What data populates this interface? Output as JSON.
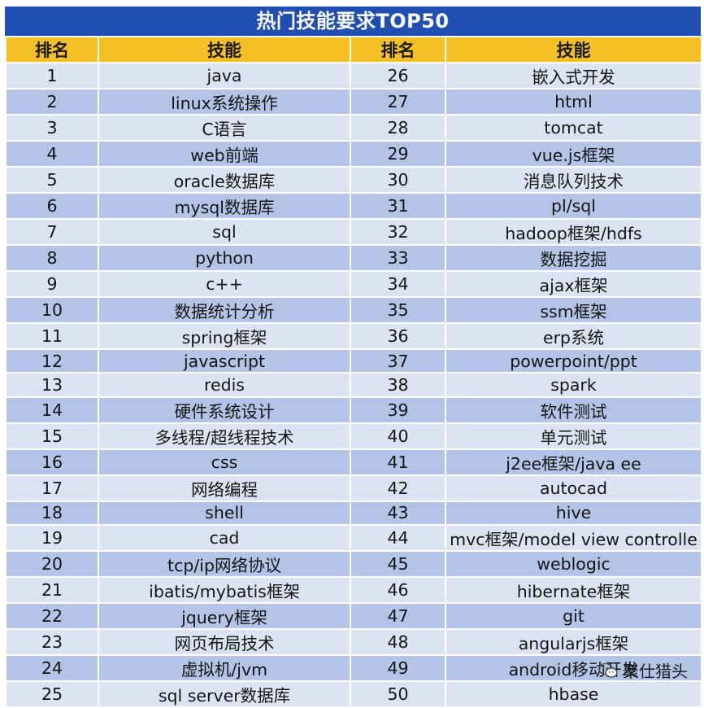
{
  "title": "热门技能要求TOP50",
  "headers": [
    "排名",
    "技能",
    "排名",
    "技能"
  ],
  "rows": [
    {
      "rank_left": "1",
      "skill_left": "java",
      "rank_right": "26",
      "skill_right": "嵌入式开发"
    },
    {
      "rank_left": "2",
      "skill_left": "linux系统操作",
      "rank_right": "27",
      "skill_right": "html"
    },
    {
      "rank_left": "3",
      "skill_left": "C语言",
      "rank_right": "28",
      "skill_right": "tomcat"
    },
    {
      "rank_left": "4",
      "skill_left": "web前端",
      "rank_right": "29",
      "skill_right": "vue.js框架"
    },
    {
      "rank_left": "5",
      "skill_left": "oracle数据库",
      "rank_right": "30",
      "skill_right": "消息队列技术"
    },
    {
      "rank_left": "6",
      "skill_left": "mysql数据库",
      "rank_right": "31",
      "skill_right": "pl/sql"
    },
    {
      "rank_left": "7",
      "skill_left": "sql",
      "rank_right": "32",
      "skill_right": "hadoop框架/hdfs"
    },
    {
      "rank_left": "8",
      "skill_left": "python",
      "rank_right": "33",
      "skill_right": "数据挖掘"
    },
    {
      "rank_left": "9",
      "skill_left": "c++",
      "rank_right": "34",
      "skill_right": "ajax框架"
    },
    {
      "rank_left": "10",
      "skill_left": "数据统计分析",
      "rank_right": "35",
      "skill_right": "ssm框架"
    },
    {
      "rank_left": "11",
      "skill_left": "spring框架",
      "rank_right": "36",
      "skill_right": "erp系统"
    },
    {
      "rank_left": "12",
      "skill_left": "javascript",
      "rank_right": "37",
      "skill_right": "powerpoint/ppt"
    },
    {
      "rank_left": "13",
      "skill_left": "redis",
      "rank_right": "38",
      "skill_right": "spark"
    },
    {
      "rank_left": "14",
      "skill_left": "硬件系统设计",
      "rank_right": "39",
      "skill_right": "软件测试"
    },
    {
      "rank_left": "15",
      "skill_left": "多线程/超线程技术",
      "rank_right": "40",
      "skill_right": "单元测试"
    },
    {
      "rank_left": "16",
      "skill_left": "css",
      "rank_right": "41",
      "skill_right": "j2ee框架/java ee"
    },
    {
      "rank_left": "17",
      "skill_left": "网络编程",
      "rank_right": "42",
      "skill_right": "autocad"
    },
    {
      "rank_left": "18",
      "skill_left": "shell",
      "rank_right": "43",
      "skill_right": "hive"
    },
    {
      "rank_left": "19",
      "skill_left": "cad",
      "rank_right": "44",
      "skill_right": "mvc框架/model view controlle"
    },
    {
      "rank_left": "20",
      "skill_left": "tcp/ip网络协议",
      "rank_right": "45",
      "skill_right": "weblogic"
    },
    {
      "rank_left": "21",
      "skill_left": "ibatis/mybatis框架",
      "rank_right": "46",
      "skill_right": "hibernate框架"
    },
    {
      "rank_left": "22",
      "skill_left": "jquery框架",
      "rank_right": "47",
      "skill_right": "git"
    },
    {
      "rank_left": "23",
      "skill_left": "网页布局技术",
      "rank_right": "48",
      "skill_right": "angularjs框架"
    },
    {
      "rank_left": "24",
      "skill_left": "虚拟机/jvm",
      "rank_right": "49",
      "skill_right": "android移动开发"
    },
    {
      "rank_left": "25",
      "skill_left": "sql server数据库",
      "rank_right": "50",
      "skill_right": "hbase"
    }
  ],
  "watermark": {
    "icon": "wechat-icon",
    "text": "聚仕猎头"
  },
  "colors": {
    "title_bg": "#1f4fb0",
    "header_bg": "#f5c026",
    "row_light": "#dbe4f3",
    "row_dark": "#b3c4e6"
  }
}
